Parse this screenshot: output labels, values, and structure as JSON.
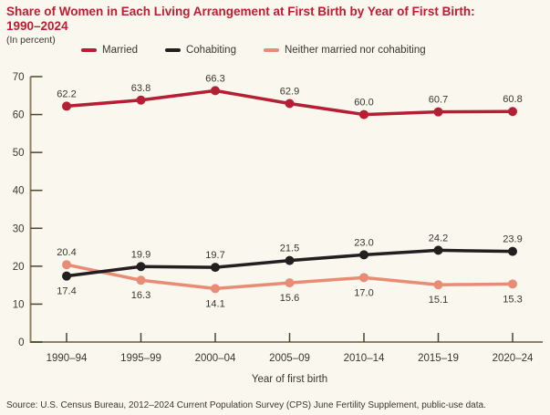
{
  "title": {
    "line1": "Share of Women in Each Living Arrangement at First Birth by Year of First Birth:",
    "line2": "1990–2024"
  },
  "subtitle": "(In percent)",
  "source": "Source: U.S. Census Bureau, 2012–2024 Current Population Survey (CPS) June Fertility Supplement, public-use data.",
  "colors": {
    "background": "#f9f7ee",
    "title_red": "#c01b31",
    "text_dark": "#3b372b",
    "axis_line": "#8d8162",
    "tick": "#4a452f",
    "married": "#b51e33",
    "cohabiting": "#231f20",
    "neither": "#e98c75"
  },
  "chart_data": {
    "type": "line",
    "title": "Share of Women in Each Living Arrangement at First Birth by Year of First Birth: 1990–2024",
    "categories": [
      "1990–94",
      "1995–99",
      "2000–04",
      "2005–09",
      "2010–14",
      "2015–19",
      "2020–24"
    ],
    "series": [
      {
        "name": "Married",
        "color": "#b51e33",
        "values": [
          62.2,
          63.8,
          66.3,
          62.9,
          60.0,
          60.7,
          60.8
        ],
        "label_position": [
          "above",
          "above",
          "above",
          "above",
          "above",
          "above",
          "above"
        ]
      },
      {
        "name": "Cohabiting",
        "color": "#231f20",
        "values": [
          17.4,
          19.9,
          19.7,
          21.5,
          23.0,
          24.2,
          23.9
        ],
        "label_position": [
          "below",
          "above",
          "above",
          "above",
          "above",
          "above",
          "above"
        ]
      },
      {
        "name": "Neither married nor cohabiting",
        "color": "#e98c75",
        "values": [
          20.4,
          16.3,
          14.1,
          15.6,
          17.0,
          15.1,
          15.3
        ],
        "label_position": [
          "above",
          "below",
          "below",
          "below",
          "below",
          "below",
          "below"
        ]
      }
    ],
    "xlabel": "Year of first birth",
    "ylabel": "",
    "ylim": [
      0,
      70
    ],
    "yticks": [
      0,
      10,
      20,
      30,
      40,
      50,
      60,
      70
    ],
    "grid": false,
    "legend_position": "top",
    "value_label_decimals": 1
  }
}
